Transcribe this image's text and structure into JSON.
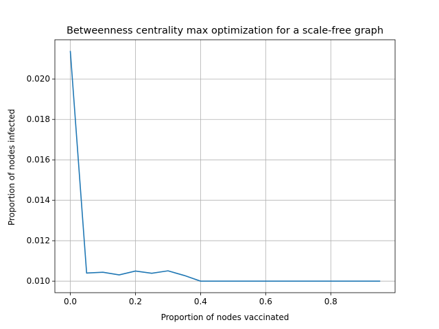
{
  "chart_data": {
    "type": "line",
    "title": "Betweenness centrality max optimization for a scale-free graph",
    "xlabel": "Proportion of nodes vaccinated",
    "ylabel": "Proportion of nodes infected",
    "xlim": [
      -0.0475,
      0.9975
    ],
    "ylim": [
      0.00943,
      0.02194
    ],
    "xticks": [
      0.0,
      0.2,
      0.4,
      0.6,
      0.8
    ],
    "xtick_labels": [
      "0.0",
      "0.2",
      "0.4",
      "0.6",
      "0.8"
    ],
    "yticks": [
      0.01,
      0.012,
      0.014,
      0.016,
      0.018,
      0.02
    ],
    "ytick_labels": [
      "0.010",
      "0.012",
      "0.014",
      "0.016",
      "0.018",
      "0.020"
    ],
    "grid": true,
    "series": [
      {
        "color": "#1f77b4",
        "x": [
          0.0,
          0.05,
          0.1,
          0.15,
          0.2,
          0.25,
          0.3,
          0.35,
          0.4,
          0.45,
          0.5,
          0.55,
          0.6,
          0.65,
          0.7,
          0.75,
          0.8,
          0.85,
          0.9,
          0.95
        ],
        "y": [
          0.02136,
          0.0104,
          0.01044,
          0.01031,
          0.0105,
          0.01039,
          0.01051,
          0.01028,
          0.01,
          0.01,
          0.01,
          0.01,
          0.01,
          0.01,
          0.01,
          0.01,
          0.01,
          0.01,
          0.01,
          0.01
        ]
      }
    ]
  }
}
